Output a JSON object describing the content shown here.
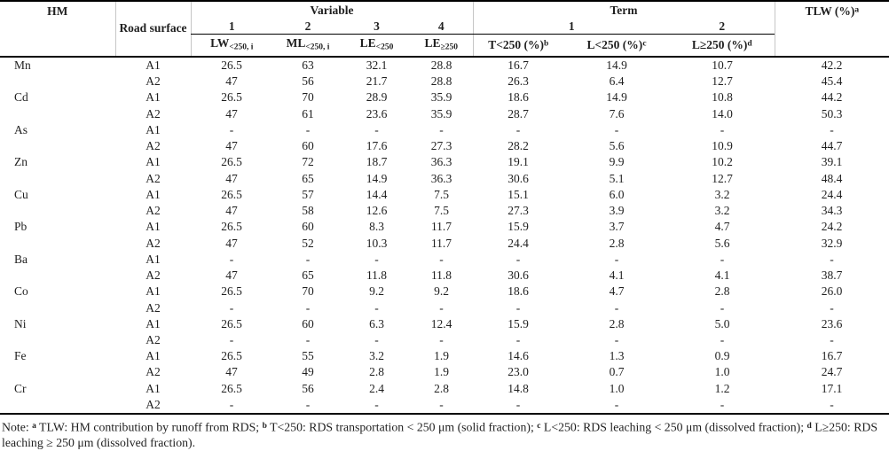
{
  "page": {
    "background": "#ffffff",
    "text_color": "#1f1f1f",
    "rule_color": "#000000",
    "faint_grid_color": "#c6c6c6"
  },
  "table": {
    "header": {
      "hm_label": "HM",
      "road_surface_label": "Road surface",
      "variable_label": "Variable",
      "term_label": "Term",
      "tlw": {
        "label": "TLW (%)",
        "sup": "a"
      },
      "variable_numbers": [
        "1",
        "2",
        "3",
        "4"
      ],
      "term_group1_number": "1",
      "term_group2_number": "2",
      "sub_headers": [
        {
          "base": "LW",
          "subscript": "<250, i"
        },
        {
          "base": "ML",
          "subscript": "<250, i"
        },
        {
          "base": "LE",
          "subscript": "<250"
        },
        {
          "base": "LE",
          "subscript": "≥250"
        },
        {
          "label": "T<250 (%)",
          "sup": "b"
        },
        {
          "label": "L<250 (%)",
          "sup": "c"
        },
        {
          "label": "L≥250 (%)",
          "sup": "d"
        }
      ]
    },
    "rows": [
      {
        "hm": "Mn",
        "surface": "A1",
        "values": [
          "26.5",
          "63",
          "32.1",
          "28.8",
          "16.7",
          "14.9",
          "10.7",
          "42.2"
        ]
      },
      {
        "hm": "",
        "surface": "A2",
        "values": [
          "47",
          "56",
          "21.7",
          "28.8",
          "26.3",
          "6.4",
          "12.7",
          "45.4"
        ]
      },
      {
        "hm": "Cd",
        "surface": "A1",
        "values": [
          "26.5",
          "70",
          "28.9",
          "35.9",
          "18.6",
          "14.9",
          "10.8",
          "44.2"
        ]
      },
      {
        "hm": "",
        "surface": "A2",
        "values": [
          "47",
          "61",
          "23.6",
          "35.9",
          "28.7",
          "7.6",
          "14.0",
          "50.3"
        ]
      },
      {
        "hm": "As",
        "surface": "A1",
        "values": [
          "-",
          "-",
          "-",
          "-",
          "-",
          "-",
          "-",
          "-"
        ]
      },
      {
        "hm": "",
        "surface": "A2",
        "values": [
          "47",
          "60",
          "17.6",
          "27.3",
          "28.2",
          "5.6",
          "10.9",
          "44.7"
        ]
      },
      {
        "hm": "Zn",
        "surface": "A1",
        "values": [
          "26.5",
          "72",
          "18.7",
          "36.3",
          "19.1",
          "9.9",
          "10.2",
          "39.1"
        ]
      },
      {
        "hm": "",
        "surface": "A2",
        "values": [
          "47",
          "65",
          "14.9",
          "36.3",
          "30.6",
          "5.1",
          "12.7",
          "48.4"
        ]
      },
      {
        "hm": "Cu",
        "surface": "A1",
        "values": [
          "26.5",
          "57",
          "14.4",
          "7.5",
          "15.1",
          "6.0",
          "3.2",
          "24.4"
        ]
      },
      {
        "hm": "",
        "surface": "A2",
        "values": [
          "47",
          "58",
          "12.6",
          "7.5",
          "27.3",
          "3.9",
          "3.2",
          "34.3"
        ]
      },
      {
        "hm": "Pb",
        "surface": "A1",
        "values": [
          "26.5",
          "60",
          "8.3",
          "11.7",
          "15.9",
          "3.7",
          "4.7",
          "24.2"
        ]
      },
      {
        "hm": "",
        "surface": "A2",
        "values": [
          "47",
          "52",
          "10.3",
          "11.7",
          "24.4",
          "2.8",
          "5.6",
          "32.9"
        ]
      },
      {
        "hm": "Ba",
        "surface": "A1",
        "values": [
          "-",
          "-",
          "-",
          "-",
          "-",
          "-",
          "-",
          "-"
        ]
      },
      {
        "hm": "",
        "surface": "A2",
        "values": [
          "47",
          "65",
          "11.8",
          "11.8",
          "30.6",
          "4.1",
          "4.1",
          "38.7"
        ]
      },
      {
        "hm": "Co",
        "surface": "A1",
        "values": [
          "26.5",
          "70",
          "9.2",
          "9.2",
          "18.6",
          "4.7",
          "2.8",
          "26.0"
        ]
      },
      {
        "hm": "",
        "surface": "A2",
        "values": [
          "-",
          "-",
          "-",
          "-",
          "-",
          "-",
          "-",
          "-"
        ]
      },
      {
        "hm": "Ni",
        "surface": "A1",
        "values": [
          "26.5",
          "60",
          "6.3",
          "12.4",
          "15.9",
          "2.8",
          "5.0",
          "23.6"
        ]
      },
      {
        "hm": "",
        "surface": "A2",
        "values": [
          "-",
          "-",
          "-",
          "-",
          "-",
          "-",
          "-",
          "-"
        ]
      },
      {
        "hm": "Fe",
        "surface": "A1",
        "values": [
          "26.5",
          "55",
          "3.2",
          "1.9",
          "14.6",
          "1.3",
          "0.9",
          "16.7"
        ]
      },
      {
        "hm": "",
        "surface": "A2",
        "values": [
          "47",
          "49",
          "2.8",
          "1.9",
          "23.0",
          "0.7",
          "1.0",
          "24.7"
        ]
      },
      {
        "hm": "Cr",
        "surface": "A1",
        "values": [
          "26.5",
          "56",
          "2.4",
          "2.8",
          "14.8",
          "1.0",
          "1.2",
          "17.1"
        ]
      },
      {
        "hm": "",
        "surface": "A2",
        "values": [
          "-",
          "-",
          "-",
          "-",
          "-",
          "-",
          "-",
          "-"
        ]
      }
    ]
  },
  "note": {
    "parts": [
      {
        "text": "Note: "
      },
      {
        "sup": "a"
      },
      {
        "text": " TLW: HM contribution by runoff from RDS; "
      },
      {
        "sup": "b"
      },
      {
        "text": " T<250: RDS transportation < 250 μm (solid fraction); "
      },
      {
        "sup": "c"
      },
      {
        "text": " L<250: RDS leaching < 250 μm (dissolved fraction); "
      },
      {
        "sup": "d"
      },
      {
        "text": " L≥250: RDS leaching ≥ 250 μm (dissolved fraction)."
      }
    ]
  }
}
